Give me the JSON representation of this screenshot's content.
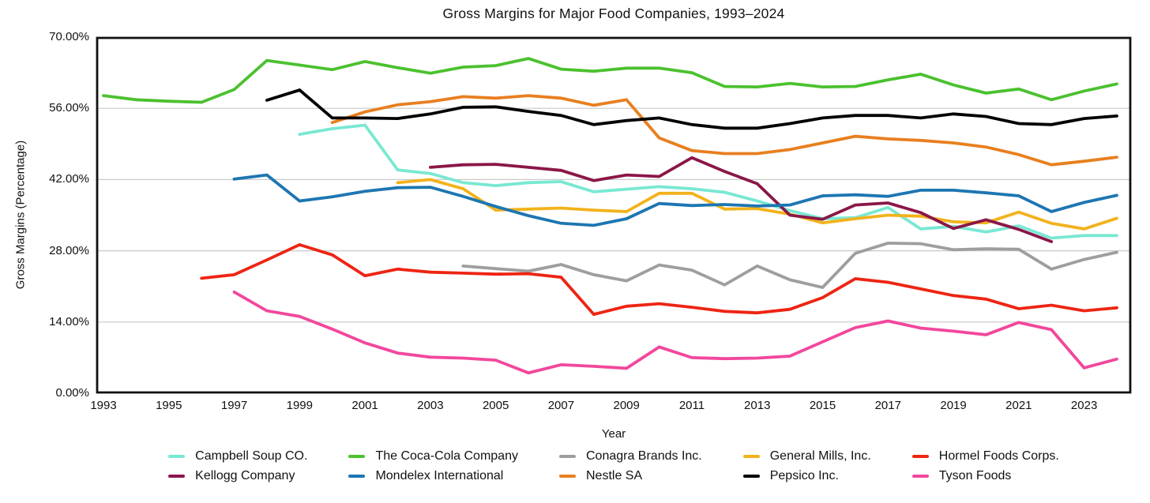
{
  "title": "Gross Margins for Major Food Companies, 1993–2024",
  "chart_data": {
    "type": "line",
    "title": "Gross Margins for Major Food Companies, 1993–2024",
    "xlabel": "Year",
    "ylabel": "Gross Margins (Percentage)",
    "ylim": [
      0,
      70
    ],
    "xlim": [
      1992.8,
      2024.4
    ],
    "grid": "horizontal-only",
    "gridline_values": [
      14,
      28,
      42,
      56
    ],
    "y_ticks": [
      {
        "value": 0,
        "label": "0.00%"
      },
      {
        "value": 14,
        "label": "14.00%"
      },
      {
        "value": 28,
        "label": "28.00%"
      },
      {
        "value": 42,
        "label": "42.00%"
      },
      {
        "value": 56,
        "label": "56.00%"
      },
      {
        "value": 70,
        "label": "70.00%"
      }
    ],
    "x_tick_years": [
      1993,
      1995,
      1997,
      1999,
      2001,
      2003,
      2005,
      2007,
      2009,
      2011,
      2013,
      2015,
      2017,
      2019,
      2021,
      2023
    ],
    "legend_position": "bottom",
    "years": [
      1993,
      1994,
      1995,
      1996,
      1997,
      1998,
      1999,
      2000,
      2001,
      2002,
      2003,
      2004,
      2005,
      2006,
      2007,
      2008,
      2009,
      2010,
      2011,
      2012,
      2013,
      2014,
      2015,
      2016,
      2017,
      2018,
      2019,
      2020,
      2021,
      2022,
      2023,
      2024
    ],
    "series": [
      {
        "name": "Campbell Soup CO.",
        "color": "#79e8d2",
        "values": [
          null,
          null,
          null,
          null,
          null,
          null,
          50.9,
          52.0,
          52.7,
          43.9,
          43.2,
          41.4,
          40.8,
          41.4,
          41.6,
          39.6,
          40.1,
          40.6,
          40.2,
          39.5,
          37.8,
          35.9,
          34.3,
          34.5,
          36.5,
          32.3,
          32.8,
          31.7,
          32.9,
          30.5,
          31.0,
          31.0
        ]
      },
      {
        "name": "The Coca-Cola Company",
        "color": "#4bc12f",
        "values": [
          58.5,
          57.7,
          57.4,
          57.2,
          59.7,
          65.4,
          64.5,
          63.6,
          65.2,
          64.0,
          62.9,
          64.1,
          64.4,
          65.8,
          63.7,
          63.3,
          63.9,
          63.9,
          63.0,
          60.3,
          60.2,
          60.9,
          60.2,
          60.3,
          61.6,
          62.7,
          60.6,
          59.0,
          59.8,
          57.7,
          59.4,
          60.8
        ]
      },
      {
        "name": "Conagra Brands Inc.",
        "color": "#9e9e9e",
        "values": [
          null,
          null,
          null,
          null,
          null,
          null,
          null,
          null,
          null,
          null,
          null,
          25.0,
          24.5,
          24.0,
          25.3,
          23.3,
          22.1,
          25.2,
          24.2,
          21.3,
          25.0,
          22.3,
          20.8,
          27.5,
          29.5,
          29.4,
          28.2,
          28.4,
          28.3,
          24.4,
          26.3,
          27.7
        ]
      },
      {
        "name": "General Mills, Inc.",
        "color": "#f2b21c",
        "values": [
          null,
          null,
          null,
          null,
          null,
          null,
          null,
          null,
          null,
          41.4,
          42.0,
          40.2,
          36.0,
          36.2,
          36.4,
          36.0,
          35.7,
          39.3,
          39.3,
          36.2,
          36.3,
          35.2,
          33.5,
          34.3,
          35.0,
          34.8,
          33.7,
          33.5,
          35.6,
          33.4,
          32.3,
          34.4
        ]
      },
      {
        "name": "Hormel Foods Corps.",
        "color": "#ee2413",
        "values": [
          null,
          null,
          null,
          22.6,
          23.3,
          26.2,
          29.2,
          27.2,
          23.1,
          24.4,
          23.8,
          23.6,
          23.4,
          23.5,
          22.8,
          15.5,
          17.1,
          17.6,
          16.9,
          16.1,
          15.8,
          16.5,
          18.8,
          22.5,
          21.8,
          20.5,
          19.2,
          18.5,
          16.6,
          17.3,
          16.2,
          16.8
        ]
      },
      {
        "name": "Kellogg Company",
        "color": "#8b1648",
        "values": [
          null,
          null,
          null,
          null,
          null,
          null,
          null,
          null,
          null,
          null,
          44.4,
          44.9,
          45.0,
          44.4,
          43.8,
          41.8,
          42.9,
          42.6,
          46.3,
          43.6,
          41.2,
          35.0,
          34.2,
          37.0,
          37.4,
          35.5,
          32.4,
          34.1,
          32.2,
          29.8,
          null,
          null
        ]
      },
      {
        "name": "Mondelex International",
        "color": "#1d76b2",
        "values": [
          null,
          null,
          null,
          null,
          42.1,
          42.9,
          37.8,
          38.6,
          39.7,
          40.4,
          40.5,
          38.7,
          36.7,
          34.9,
          33.4,
          33.0,
          34.3,
          37.3,
          36.9,
          37.1,
          36.8,
          37.0,
          38.8,
          39.0,
          38.7,
          39.9,
          39.9,
          39.4,
          38.8,
          35.7,
          37.5,
          38.9
        ]
      },
      {
        "name": "Nestle SA",
        "color": "#e87f1f",
        "values": [
          null,
          null,
          null,
          null,
          null,
          null,
          null,
          53.2,
          55.3,
          56.7,
          57.3,
          58.3,
          58.0,
          58.5,
          58.0,
          56.6,
          57.7,
          50.2,
          47.7,
          47.1,
          47.1,
          47.9,
          49.2,
          50.5,
          50.0,
          49.7,
          49.2,
          48.4,
          46.9,
          44.9,
          45.6,
          46.4
        ]
      },
      {
        "name": "Pepsico Inc.",
        "color": "#000000",
        "values": [
          null,
          null,
          null,
          null,
          null,
          57.6,
          59.6,
          54.1,
          54.1,
          54.0,
          54.9,
          56.2,
          56.3,
          55.4,
          54.6,
          52.8,
          53.6,
          54.1,
          52.8,
          52.1,
          52.1,
          53.0,
          54.1,
          54.6,
          54.6,
          54.1,
          54.9,
          54.4,
          53.0,
          52.8,
          54.0,
          54.5
        ]
      },
      {
        "name": "Tyson Foods",
        "color": "#f2479c",
        "values": [
          null,
          null,
          null,
          null,
          19.9,
          16.2,
          15.1,
          12.6,
          9.9,
          7.9,
          7.1,
          6.9,
          6.5,
          4.0,
          5.6,
          5.3,
          4.9,
          9.1,
          7.0,
          6.8,
          6.9,
          7.3,
          10.1,
          12.9,
          14.2,
          12.8,
          12.2,
          11.5,
          13.9,
          12.5,
          5.0,
          6.7
        ]
      }
    ]
  }
}
